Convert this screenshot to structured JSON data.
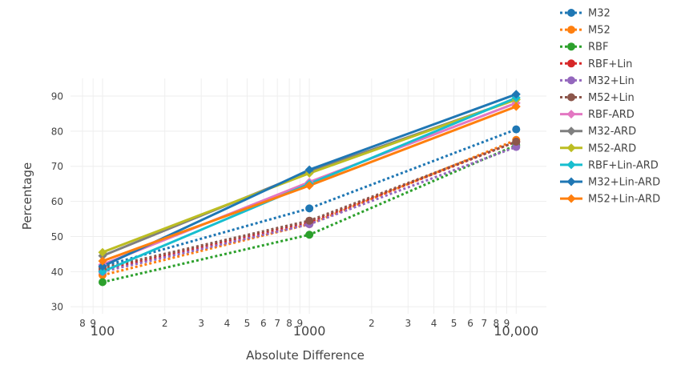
{
  "chart_data": {
    "type": "line",
    "xscale": "log",
    "x": [
      100,
      1000,
      10000
    ],
    "xlim": [
      70,
      14000
    ],
    "ylim": [
      28,
      95
    ],
    "xlabel": "Absolute Difference",
    "ylabel": "Percentage",
    "x_major_ticks": [
      {
        "value": 100,
        "label": "100"
      },
      {
        "value": 1000,
        "label": "1000"
      },
      {
        "value": 10000,
        "label": "10,000"
      }
    ],
    "x_minor_ticks": [
      {
        "value": 80,
        "label": "8"
      },
      {
        "value": 90,
        "label": "9"
      },
      {
        "value": 200,
        "label": "2"
      },
      {
        "value": 300,
        "label": "3"
      },
      {
        "value": 400,
        "label": "4"
      },
      {
        "value": 500,
        "label": "5"
      },
      {
        "value": 600,
        "label": "6"
      },
      {
        "value": 700,
        "label": "7"
      },
      {
        "value": 800,
        "label": "8"
      },
      {
        "value": 900,
        "label": "9"
      },
      {
        "value": 2000,
        "label": "2"
      },
      {
        "value": 3000,
        "label": "3"
      },
      {
        "value": 4000,
        "label": "4"
      },
      {
        "value": 5000,
        "label": "5"
      },
      {
        "value": 6000,
        "label": "6"
      },
      {
        "value": 7000,
        "label": "7"
      },
      {
        "value": 8000,
        "label": "8"
      },
      {
        "value": 9000,
        "label": "9"
      }
    ],
    "y_ticks": [
      {
        "value": 30,
        "label": "30"
      },
      {
        "value": 40,
        "label": "40"
      },
      {
        "value": 50,
        "label": "50"
      },
      {
        "value": 60,
        "label": "60"
      },
      {
        "value": 70,
        "label": "70"
      },
      {
        "value": 80,
        "label": "80"
      },
      {
        "value": 90,
        "label": "90"
      }
    ],
    "grid": true,
    "legend_position": "top-right",
    "series": [
      {
        "name": "M32",
        "color": "#1f77b4",
        "dash": "dot",
        "marker": "circle",
        "values": [
          41.5,
          58,
          80.5
        ]
      },
      {
        "name": "M52",
        "color": "#ff7f0e",
        "dash": "dot",
        "marker": "circle",
        "values": [
          39,
          53.5,
          77.5
        ]
      },
      {
        "name": "RBF",
        "color": "#2ca02c",
        "dash": "dot",
        "marker": "circle",
        "values": [
          37,
          50.5,
          76
        ]
      },
      {
        "name": "RBF+Lin",
        "color": "#d62728",
        "dash": "dot",
        "marker": "circle",
        "values": [
          40.5,
          54,
          77
        ]
      },
      {
        "name": "M32+Lin",
        "color": "#9467bd",
        "dash": "dot",
        "marker": "circle",
        "values": [
          40,
          53.5,
          75.5
        ]
      },
      {
        "name": "M52+Lin",
        "color": "#8c564b",
        "dash": "dot",
        "marker": "circle",
        "values": [
          41,
          54.5,
          77
        ]
      },
      {
        "name": "RBF-ARD",
        "color": "#e377c2",
        "dash": "solid",
        "marker": "diamond",
        "values": [
          42,
          65.5,
          88
        ]
      },
      {
        "name": "M32-ARD",
        "color": "#7f7f7f",
        "dash": "solid",
        "marker": "diamond",
        "values": [
          44.5,
          68.5,
          89
        ]
      },
      {
        "name": "M52-ARD",
        "color": "#bcbd22",
        "dash": "solid",
        "marker": "diamond",
        "values": [
          45.5,
          68,
          89
        ]
      },
      {
        "name": "RBF+Lin-ARD",
        "color": "#17becf",
        "dash": "solid",
        "marker": "diamond",
        "values": [
          40,
          65,
          89.5
        ]
      },
      {
        "name": "M32+Lin-ARD",
        "color": "#1f77b4",
        "dash": "solid",
        "marker": "diamond",
        "values": [
          41.5,
          69,
          90.5
        ]
      },
      {
        "name": "M52+Lin-ARD",
        "color": "#ff7f0e",
        "dash": "solid",
        "marker": "diamond",
        "values": [
          43,
          64.5,
          87
        ]
      }
    ]
  }
}
